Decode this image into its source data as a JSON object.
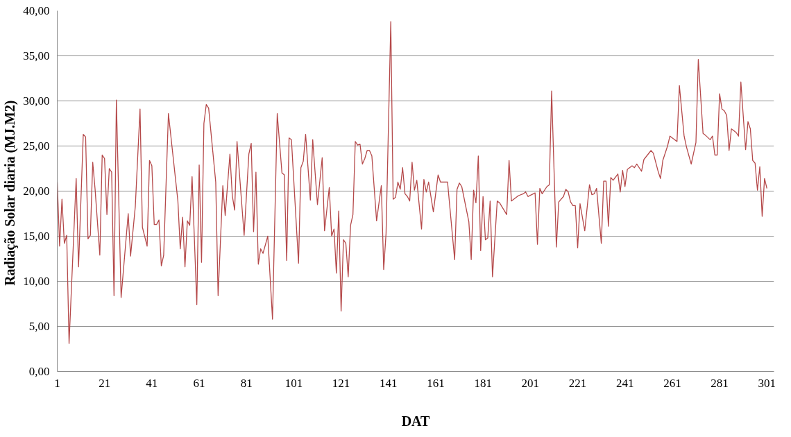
{
  "chart_data": {
    "type": "line",
    "xlabel": "DAT",
    "ylabel": "Radiação Solar diaria  (MJ.M2)",
    "x": [
      1,
      2,
      3,
      4,
      5,
      6,
      9,
      10,
      12,
      13,
      14,
      15,
      16,
      17,
      19,
      20,
      21,
      22,
      23,
      24,
      25,
      26,
      28,
      31,
      32,
      34,
      36,
      37,
      39,
      40,
      41,
      42,
      43,
      44,
      45,
      46,
      48,
      52,
      53,
      54,
      55,
      56,
      57,
      58,
      60,
      61,
      62,
      63,
      64,
      65,
      68,
      69,
      71,
      72,
      74,
      75,
      76,
      77,
      80,
      82,
      83,
      84,
      85,
      86,
      87,
      88,
      90,
      92,
      94,
      96,
      97,
      98,
      99,
      100,
      103,
      104,
      105,
      106,
      108,
      109,
      111,
      113,
      114,
      116,
      117,
      118,
      119,
      120,
      121,
      122,
      123,
      124,
      125,
      126,
      127,
      128,
      129,
      130,
      131,
      132,
      133,
      134,
      136,
      138,
      139,
      140,
      142,
      143,
      144,
      145,
      146,
      147,
      148,
      149,
      150,
      151,
      152,
      153,
      155,
      156,
      157,
      158,
      160,
      162,
      163,
      166,
      169,
      170,
      171,
      172,
      175,
      176,
      177,
      178,
      179,
      180,
      181,
      182,
      183,
      184,
      185,
      187,
      188,
      191,
      192,
      193,
      196,
      198,
      199,
      200,
      203,
      204,
      205,
      206,
      208,
      209,
      210,
      212,
      213,
      215,
      216,
      217,
      218,
      219,
      220,
      221,
      222,
      224,
      226,
      227,
      228,
      229,
      231,
      232,
      233,
      234,
      235,
      236,
      238,
      239,
      240,
      241,
      242,
      244,
      245,
      246,
      248,
      249,
      252,
      253,
      255,
      256,
      257,
      259,
      260,
      263,
      264,
      266,
      267,
      269,
      271,
      272,
      274,
      275,
      277,
      278,
      279,
      280,
      281,
      282,
      283,
      284,
      285,
      286,
      288,
      289,
      290,
      292,
      293,
      294,
      295,
      296,
      297,
      298,
      299,
      300,
      301
    ],
    "series": [
      {
        "color": "#b5494a",
        "values": [
          21.0,
          13.9,
          19.1,
          14.2,
          15.1,
          3.1,
          21.4,
          11.6,
          26.3,
          26.0,
          14.7,
          15.1,
          23.2,
          20.2,
          12.9,
          24.0,
          23.6,
          17.4,
          22.5,
          22.1,
          8.4,
          30.1,
          8.2,
          17.5,
          12.8,
          18.3,
          29.1,
          16.0,
          13.9,
          23.4,
          22.8,
          16.3,
          16.3,
          16.8,
          11.7,
          12.9,
          28.6,
          18.9,
          13.6,
          17.1,
          11.6,
          16.7,
          16.2,
          21.6,
          7.4,
          22.9,
          12.1,
          27.5,
          29.6,
          29.2,
          21.0,
          8.4,
          20.6,
          17.3,
          24.1,
          19.5,
          17.9,
          25.5,
          15.1,
          24.1,
          25.3,
          15.5,
          22.1,
          11.9,
          13.6,
          13.1,
          15.0,
          5.8,
          28.6,
          22.0,
          21.8,
          12.3,
          25.9,
          25.7,
          12.0,
          22.6,
          23.3,
          26.3,
          19.0,
          25.7,
          18.5,
          23.7,
          15.6,
          20.4,
          15.0,
          15.8,
          10.9,
          17.8,
          6.7,
          14.6,
          14.2,
          10.5,
          16.2,
          17.4,
          25.5,
          25.1,
          25.2,
          23.0,
          23.6,
          24.5,
          24.5,
          23.9,
          16.7,
          20.6,
          11.3,
          15.3,
          38.8,
          19.1,
          19.3,
          21.0,
          20.2,
          22.6,
          19.7,
          19.4,
          18.9,
          23.2,
          20.1,
          21.2,
          15.8,
          21.3,
          19.9,
          21.0,
          17.7,
          21.8,
          21.0,
          21.0,
          12.4,
          20.2,
          20.9,
          20.5,
          16.6,
          12.4,
          20.1,
          18.7,
          23.9,
          13.4,
          19.4,
          14.6,
          14.8,
          18.9,
          10.5,
          18.9,
          18.7,
          17.4,
          23.4,
          18.9,
          19.5,
          19.7,
          19.9,
          19.4,
          19.8,
          14.1,
          20.3,
          19.7,
          20.5,
          20.7,
          31.1,
          13.8,
          18.8,
          19.4,
          20.2,
          19.9,
          18.8,
          18.4,
          18.4,
          13.7,
          18.6,
          15.6,
          20.7,
          19.6,
          19.7,
          20.3,
          14.2,
          21.1,
          21.1,
          16.1,
          21.5,
          21.2,
          21.9,
          19.9,
          22.3,
          20.5,
          22.4,
          22.8,
          22.6,
          23.0,
          22.2,
          23.5,
          24.5,
          24.2,
          22.2,
          21.4,
          23.4,
          25.0,
          26.1,
          25.5,
          31.7,
          26.1,
          24.9,
          23.0,
          25.4,
          34.6,
          26.4,
          26.2,
          25.7,
          26.1,
          24.0,
          24.0,
          30.8,
          29.1,
          28.9,
          28.4,
          24.5,
          26.9,
          26.5,
          26.1,
          32.1,
          24.6,
          27.7,
          26.9,
          23.4,
          23.1,
          20.1,
          22.7,
          17.2,
          21.4,
          20.3
        ]
      }
    ],
    "xlim": [
      1,
      304
    ],
    "xticks": [
      1,
      21,
      41,
      61,
      81,
      101,
      121,
      141,
      161,
      181,
      201,
      221,
      241,
      261,
      281,
      301
    ],
    "ylim": [
      0,
      40
    ],
    "yticks": [
      {
        "value": 0,
        "label": "0,00"
      },
      {
        "value": 5,
        "label": "5,00"
      },
      {
        "value": 10,
        "label": "10,00"
      },
      {
        "value": 15,
        "label": "15,00"
      },
      {
        "value": 20,
        "label": "20,00"
      },
      {
        "value": 25,
        "label": "25,00"
      },
      {
        "value": 30,
        "label": "30,00"
      },
      {
        "value": 35,
        "label": "35,00"
      },
      {
        "value": 40,
        "label": "40,00"
      }
    ],
    "grid": "y",
    "marker": "none",
    "line_style": "solid"
  }
}
